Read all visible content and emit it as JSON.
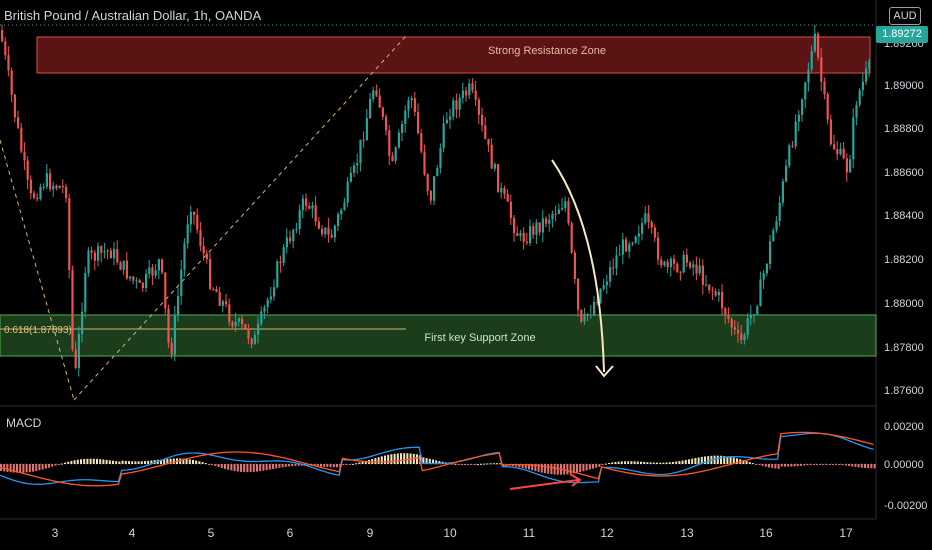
{
  "header": {
    "title": "British Pound / Australian Dollar, 1h, OANDA",
    "currency_badge": "AUD"
  },
  "price_scale": {
    "ticks": [
      "1.89200",
      "1.89000",
      "1.88800",
      "1.88600",
      "1.88400",
      "1.88200",
      "1.88000",
      "1.87800",
      "1.87600"
    ],
    "last_price": "1.89272"
  },
  "macd_scale": {
    "ticks": [
      "0.00200",
      "0.00000",
      "-0.00200"
    ]
  },
  "time_axis": {
    "ticks": [
      "3",
      "4",
      "5",
      "6",
      "9",
      "10",
      "11",
      "12",
      "13",
      "16",
      "17"
    ]
  },
  "annotations": {
    "resistance_label": "Strong Resistance Zone",
    "support_label": "First key Support Zone",
    "fib_label": "0.618(1.87893)"
  },
  "indicator": {
    "label": "MACD"
  },
  "colors": {
    "up": "#26a69a",
    "down": "#ef5350",
    "resistance_fill": "#5a1414",
    "resistance_border": "#d84c4c",
    "support_fill": "#1b3d1b",
    "support_border": "#4caf50",
    "macd_line": "#2196f3",
    "signal_line": "#ff5722",
    "hist_pos": "#f2e6b6",
    "hist_neg": "#e57373",
    "fib_line": "#d8b46a",
    "arrow": "#f5e9c0"
  }
}
